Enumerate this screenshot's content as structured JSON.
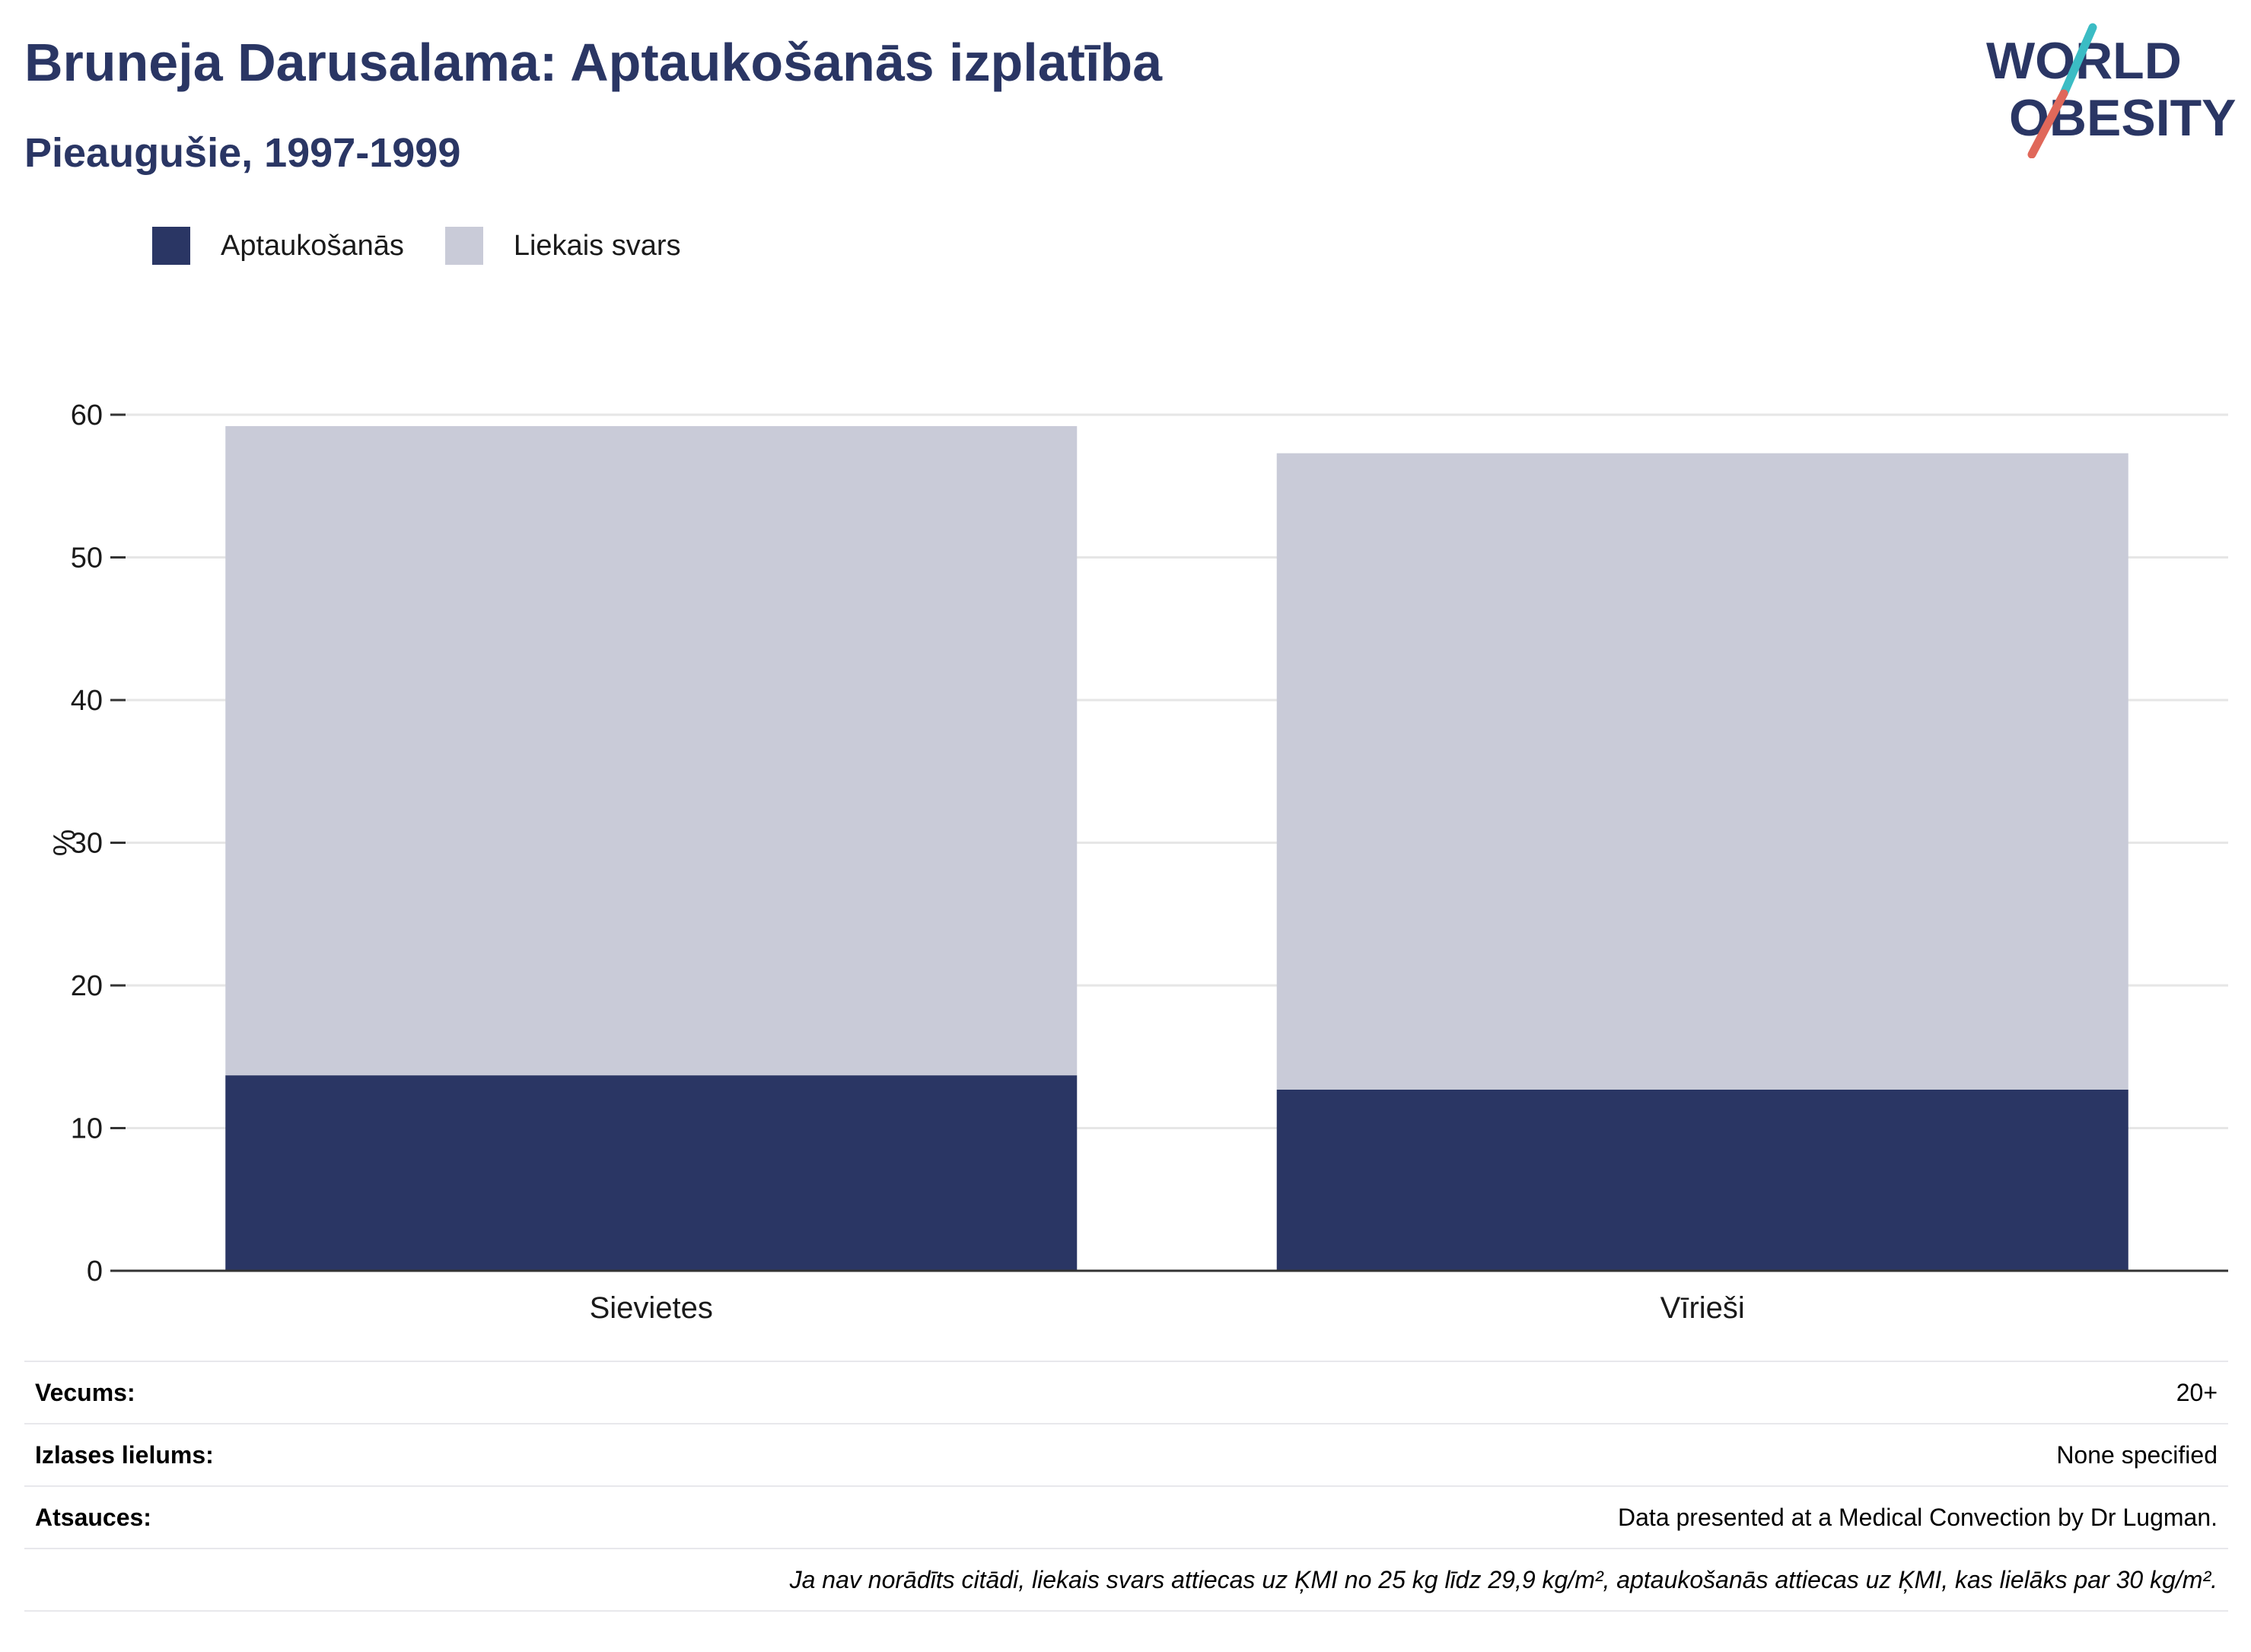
{
  "header": {
    "title": "Bruneja Darusalama: Aptaukošanās izplatība",
    "subtitle": "Pieaugušie, 1997-1999"
  },
  "logo": {
    "line1": "WORLD",
    "line2": "OBESITY",
    "colors": {
      "text": "#2a3664",
      "slash_top": "#3bbcc4",
      "slash_bottom": "#e0685a"
    }
  },
  "colors": {
    "obesity": "#2a3664",
    "overweight": "#c9cbd8",
    "grid": "#e6e6e6",
    "axis": "#333333"
  },
  "legend": [
    {
      "label": "Aptaukošanās",
      "color": "#2a3664"
    },
    {
      "label": "Liekais svars",
      "color": "#c9cbd8"
    }
  ],
  "chart_data": {
    "type": "bar",
    "stacked": true,
    "categories": [
      "Sievietes",
      "Vīrieši"
    ],
    "series": [
      {
        "name": "Aptaukošanās",
        "values": [
          13.7,
          12.7
        ]
      },
      {
        "name": "Liekais svars",
        "values": [
          45.5,
          44.6
        ]
      }
    ],
    "totals": [
      59.2,
      57.3
    ],
    "ylabel": "%",
    "xlabel": "",
    "ylim": [
      0,
      60
    ],
    "yticks": [
      0,
      10,
      20,
      30,
      40,
      50,
      60
    ],
    "grid": true,
    "legend_position": "top-left"
  },
  "info": [
    {
      "label": "Vecums:",
      "value": "20+"
    },
    {
      "label": "Izlases lielums:",
      "value": "None specified"
    },
    {
      "label": "Atsauces:",
      "value": "Data presented at a Medical Convection by Dr Lugman."
    },
    {
      "label": "",
      "value": "Ja nav norādīts citādi, liekais svars attiecas uz ĶMI no 25 kg līdz 29,9 kg/m², aptaukošanās attiecas uz ĶMI, kas lielāks par 30 kg/m²."
    }
  ]
}
